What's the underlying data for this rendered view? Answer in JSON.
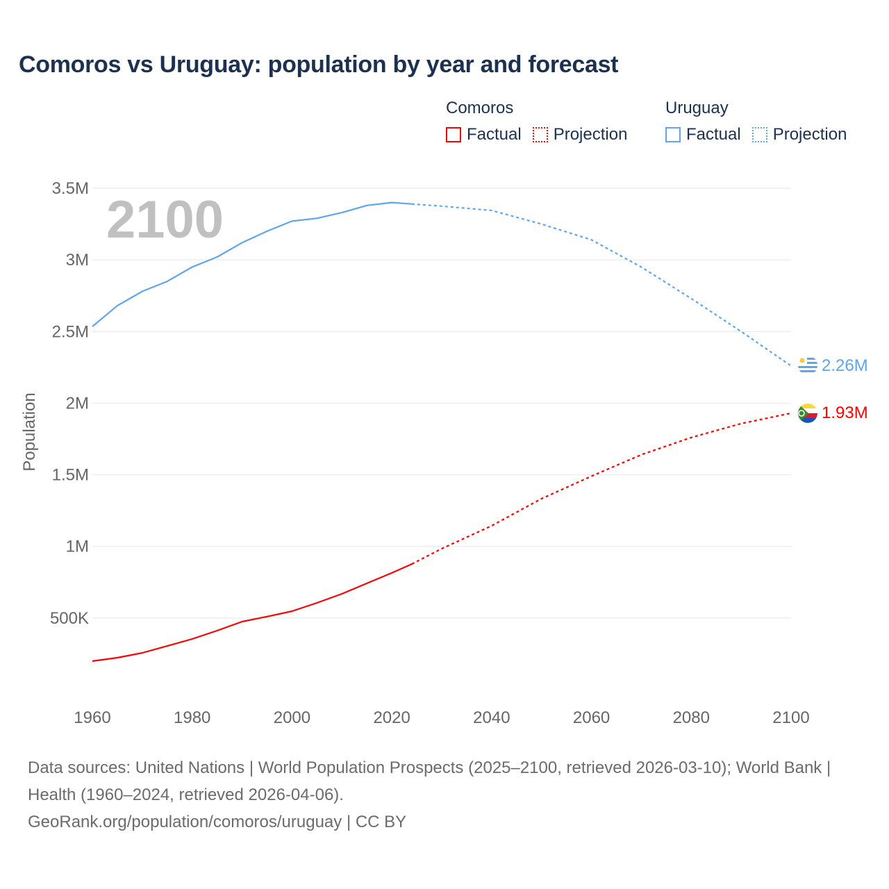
{
  "chart_data": {
    "type": "line",
    "title": "Comoros vs Uruguay: population by year and forecast",
    "ylabel": "Population",
    "xlabel": "",
    "xlim": [
      1960,
      2100
    ],
    "ylim": [
      0,
      3500000
    ],
    "grid": true,
    "year_watermark": "2100",
    "x_ticks": [
      "1960",
      "1980",
      "2000",
      "2020",
      "2040",
      "2060",
      "2080",
      "2100"
    ],
    "y_ticks": [
      {
        "value": 500000,
        "label": "500K"
      },
      {
        "value": 1000000,
        "label": "1M"
      },
      {
        "value": 1500000,
        "label": "1.5M"
      },
      {
        "value": 2000000,
        "label": "2M"
      },
      {
        "value": 2500000,
        "label": "2.5M"
      },
      {
        "value": 3000000,
        "label": "3M"
      },
      {
        "value": 3500000,
        "label": "3.5M"
      }
    ],
    "legend": {
      "placement": "top-right",
      "groups": [
        {
          "name": "Comoros",
          "factual": "Factual",
          "projection": "Projection"
        },
        {
          "name": "Uruguay",
          "factual": "Factual",
          "projection": "Projection"
        }
      ]
    },
    "series": [
      {
        "name": "Uruguay",
        "color": "#5ea5ee",
        "end_label": "2.26M",
        "factual": {
          "x": [
            1960,
            1965,
            1970,
            1975,
            1980,
            1985,
            1990,
            1995,
            2000,
            2005,
            2010,
            2015,
            2020,
            2024
          ],
          "y": [
            2535000,
            2680000,
            2780000,
            2850000,
            2950000,
            3020000,
            3120000,
            3200000,
            3270000,
            3290000,
            3330000,
            3380000,
            3400000,
            3390000
          ]
        },
        "projection": {
          "x": [
            2024,
            2030,
            2040,
            2050,
            2060,
            2070,
            2080,
            2090,
            2100
          ],
          "y": [
            3390000,
            3375000,
            3345000,
            3250000,
            3140000,
            2950000,
            2730000,
            2500000,
            2260000
          ]
        }
      },
      {
        "name": "Comoros",
        "color": "#ff0000",
        "end_label": "1.93M",
        "factual": {
          "x": [
            1960,
            1965,
            1970,
            1975,
            1980,
            1985,
            1990,
            1995,
            2000,
            2005,
            2010,
            2015,
            2020,
            2024
          ],
          "y": [
            199000,
            223000,
            257000,
            305000,
            354000,
            412000,
            475000,
            510000,
            548000,
            606000,
            669000,
            742000,
            815000,
            877000
          ]
        },
        "projection": {
          "x": [
            2024,
            2030,
            2040,
            2050,
            2060,
            2070,
            2080,
            2090,
            2100
          ],
          "y": [
            877000,
            984000,
            1144000,
            1333000,
            1490000,
            1640000,
            1760000,
            1857000,
            1930000
          ]
        }
      }
    ]
  },
  "footer": {
    "sources": "Data sources: United Nations | World Population Prospects (2025–2100, retrieved 2026-03-10); World Bank | Health (1960–2024, retrieved 2026-04-06).",
    "link": "GeoRank.org/population/comoros/uruguay | CC BY"
  }
}
